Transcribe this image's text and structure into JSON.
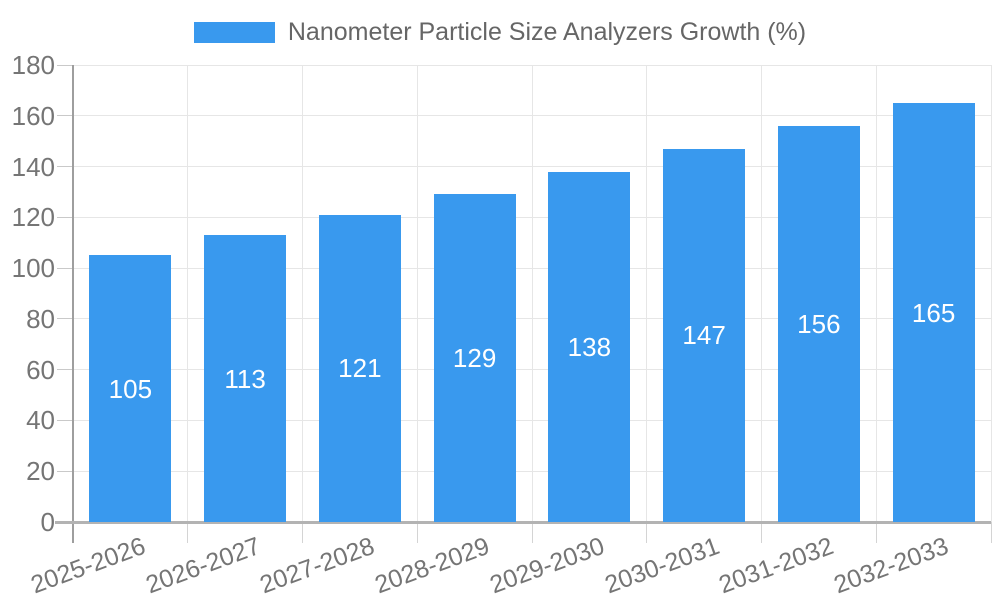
{
  "legend": {
    "label": "Nanometer Particle Size Analyzers Growth (%)"
  },
  "colors": {
    "bar": "#3999ee",
    "legend_text": "#666666",
    "axis_text": "#757575",
    "value_label_text": "#ffffff",
    "gridline": "#e6e6e6",
    "y_axis_line": "#9e9e9e",
    "x_axis_line": "#b3b3b3",
    "background": "#ffffff"
  },
  "chart_data": {
    "type": "bar",
    "title": "",
    "xlabel": "",
    "ylabel": "",
    "categories": [
      "2025-2026",
      "2026-2027",
      "2027-2028",
      "2028-2029",
      "2029-2030",
      "2030-2031",
      "2031-2032",
      "2032-2033"
    ],
    "values": [
      105,
      113,
      121,
      129,
      138,
      147,
      156,
      165
    ],
    "series_name": "Nanometer Particle Size Analyzers Growth (%)",
    "ylim": [
      0,
      180
    ],
    "ytick_step": 20,
    "ytick_labels": [
      "0",
      "20",
      "40",
      "60",
      "80",
      "100",
      "120",
      "140",
      "160",
      "180"
    ],
    "grid": true,
    "legend_position": "top-center",
    "value_labels_position": "inside-center",
    "x_label_rotation_deg": -20
  }
}
